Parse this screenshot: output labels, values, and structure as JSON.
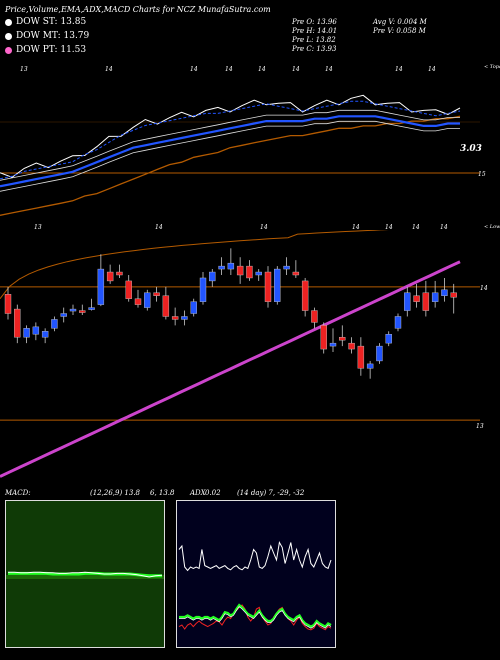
{
  "header": {
    "title": "Price,Volume,EMA,ADX,MACD Charts for NCZ MunafaSutra.com",
    "legend": [
      {
        "label": "DOW ST: 13.85",
        "color": "#ffffff"
      },
      {
        "label": "DOW MT: 13.79",
        "color": "#ffffff"
      },
      {
        "label": "DOW PT: 11.53",
        "color": "#ff66cc"
      }
    ],
    "stats": {
      "open": "Pre   O: 13.96",
      "high": "Pre   H: 14.01",
      "low": "Pre   L: 13.82",
      "close": "Pre   C: 13.93",
      "avg_vol": "Avg V: 0.004   M",
      "prev_vol": "Pre   V: 0.058   M"
    }
  },
  "ema_chart": {
    "top_tags": [
      "13",
      "14",
      "14",
      "14",
      "14",
      "14",
      "14",
      "14",
      "14"
    ],
    "top_right_tag": "< Topa",
    "bottom_tags": [
      "13",
      "14",
      "14",
      "14",
      "14",
      "14",
      "14"
    ],
    "bottom_right_tag": "< Loweа",
    "value_label": "3.03",
    "level_label": "15",
    "line_colors": {
      "white": "#ffffff",
      "blue": "#2255ff",
      "brown": "#b35a00",
      "orange": "#ff8800"
    }
  },
  "chart_data": [
    {
      "type": "line",
      "title": "",
      "series": [
        {
          "values": [
            40,
            39,
            37,
            36,
            35,
            34,
            33,
            30,
            28,
            25,
            22,
            20,
            18,
            17,
            16,
            15,
            14,
            13,
            13,
            12,
            11,
            10,
            9,
            10,
            11,
            12,
            11,
            10,
            9,
            8,
            8,
            9,
            10,
            11,
            12,
            13,
            14,
            13,
            12
          ]
        },
        {
          "values": [
            44,
            43,
            42,
            41,
            40,
            39,
            38,
            36,
            34,
            32,
            30,
            28,
            27,
            26,
            25,
            24,
            23,
            22,
            21,
            20,
            19,
            18,
            17,
            17,
            17,
            17,
            16,
            16,
            15,
            15,
            15,
            15,
            16,
            17,
            18,
            19,
            19,
            18,
            18
          ]
        },
        {
          "values": [
            56,
            55,
            54,
            53,
            52,
            51,
            50,
            48,
            47,
            45,
            43,
            41,
            39,
            37,
            35,
            34,
            32,
            31,
            30,
            28,
            27,
            26,
            25,
            24,
            23,
            23,
            22,
            21,
            20,
            20,
            19,
            19,
            18,
            18,
            17,
            17,
            16,
            16,
            15
          ]
        }
      ]
    },
    {
      "type": "candlestick",
      "title": "",
      "price_level_label": "14",
      "lower_level_label": "13",
      "candles": [
        {
          "o": 13.95,
          "h": 14.0,
          "l": 13.78,
          "c": 13.82
        },
        {
          "o": 13.85,
          "h": 13.88,
          "l": 13.62,
          "c": 13.66
        },
        {
          "o": 13.66,
          "h": 13.74,
          "l": 13.62,
          "c": 13.72
        },
        {
          "o": 13.68,
          "h": 13.76,
          "l": 13.64,
          "c": 13.73
        },
        {
          "o": 13.66,
          "h": 13.72,
          "l": 13.62,
          "c": 13.7
        },
        {
          "o": 13.72,
          "h": 13.8,
          "l": 13.7,
          "c": 13.78
        },
        {
          "o": 13.8,
          "h": 13.86,
          "l": 13.76,
          "c": 13.82
        },
        {
          "o": 13.84,
          "h": 13.88,
          "l": 13.81,
          "c": 13.85
        },
        {
          "o": 13.84,
          "h": 13.88,
          "l": 13.81,
          "c": 13.83
        },
        {
          "o": 13.86,
          "h": 13.92,
          "l": 13.84,
          "c": 13.86
        },
        {
          "o": 13.88,
          "h": 14.22,
          "l": 13.87,
          "c": 14.12
        },
        {
          "o": 14.1,
          "h": 14.15,
          "l": 14.02,
          "c": 14.04
        },
        {
          "o": 14.1,
          "h": 14.15,
          "l": 14.06,
          "c": 14.08
        },
        {
          "o": 14.04,
          "h": 14.08,
          "l": 13.9,
          "c": 13.92
        },
        {
          "o": 13.92,
          "h": 13.98,
          "l": 13.86,
          "c": 13.88
        },
        {
          "o": 13.86,
          "h": 13.98,
          "l": 13.84,
          "c": 13.96
        },
        {
          "o": 13.96,
          "h": 14.0,
          "l": 13.9,
          "c": 13.94
        },
        {
          "o": 13.94,
          "h": 14.0,
          "l": 13.78,
          "c": 13.8
        },
        {
          "o": 13.8,
          "h": 13.86,
          "l": 13.74,
          "c": 13.78
        },
        {
          "o": 13.78,
          "h": 13.84,
          "l": 13.74,
          "c": 13.8
        },
        {
          "o": 13.82,
          "h": 13.92,
          "l": 13.8,
          "c": 13.9
        },
        {
          "o": 13.9,
          "h": 14.1,
          "l": 13.88,
          "c": 14.06
        },
        {
          "o": 14.04,
          "h": 14.12,
          "l": 14.0,
          "c": 14.1
        },
        {
          "o": 14.12,
          "h": 14.2,
          "l": 14.08,
          "c": 14.14
        },
        {
          "o": 14.12,
          "h": 14.26,
          "l": 14.08,
          "c": 14.16
        },
        {
          "o": 14.14,
          "h": 14.2,
          "l": 14.02,
          "c": 14.08
        },
        {
          "o": 14.14,
          "h": 14.18,
          "l": 14.04,
          "c": 14.06
        },
        {
          "o": 14.08,
          "h": 14.12,
          "l": 14.04,
          "c": 14.1
        },
        {
          "o": 14.1,
          "h": 14.14,
          "l": 13.86,
          "c": 13.9
        },
        {
          "o": 13.9,
          "h": 14.14,
          "l": 13.88,
          "c": 14.12
        },
        {
          "o": 14.12,
          "h": 14.2,
          "l": 14.08,
          "c": 14.14
        },
        {
          "o": 14.1,
          "h": 14.18,
          "l": 14.06,
          "c": 14.08
        },
        {
          "o": 14.04,
          "h": 14.06,
          "l": 13.8,
          "c": 13.84
        },
        {
          "o": 13.84,
          "h": 13.86,
          "l": 13.72,
          "c": 13.76
        },
        {
          "o": 13.74,
          "h": 13.76,
          "l": 13.55,
          "c": 13.58
        },
        {
          "o": 13.6,
          "h": 13.72,
          "l": 13.56,
          "c": 13.62
        },
        {
          "o": 13.66,
          "h": 13.74,
          "l": 13.6,
          "c": 13.64
        },
        {
          "o": 13.62,
          "h": 13.66,
          "l": 13.55,
          "c": 13.58
        },
        {
          "o": 13.6,
          "h": 13.66,
          "l": 13.4,
          "c": 13.45
        },
        {
          "o": 13.45,
          "h": 13.5,
          "l": 13.38,
          "c": 13.48
        },
        {
          "o": 13.5,
          "h": 13.62,
          "l": 13.48,
          "c": 13.6
        },
        {
          "o": 13.62,
          "h": 13.7,
          "l": 13.6,
          "c": 13.68
        },
        {
          "o": 13.72,
          "h": 13.82,
          "l": 13.7,
          "c": 13.8
        },
        {
          "o": 13.84,
          "h": 14.0,
          "l": 13.8,
          "c": 13.96
        },
        {
          "o": 13.94,
          "h": 14.02,
          "l": 13.86,
          "c": 13.9
        },
        {
          "o": 13.96,
          "h": 14.04,
          "l": 13.8,
          "c": 13.84
        },
        {
          "o": 13.9,
          "h": 14.04,
          "l": 13.86,
          "c": 13.96
        },
        {
          "o": 13.94,
          "h": 14.06,
          "l": 13.9,
          "c": 13.98
        },
        {
          "o": 13.96,
          "h": 14.02,
          "l": 13.82,
          "c": 13.93
        }
      ]
    },
    {
      "type": "line",
      "title": "MACD",
      "params": "(12,26,9) 13.8",
      "series": [
        {
          "values": [
            0.08,
            0.08,
            0.07,
            0.07,
            0.08,
            0.08,
            0.07,
            0.07,
            0.06,
            0.06,
            0.07,
            0.07,
            0.08,
            0.07,
            0.06,
            0.05,
            0.05,
            0.06,
            0.06,
            0.05,
            0.04,
            0.02,
            0.0,
            0.02,
            0.03
          ]
        },
        {
          "values": [
            0.06,
            0.06,
            0.06,
            0.06,
            0.06,
            0.06,
            0.06,
            0.05,
            0.05,
            0.05,
            0.05,
            0.05,
            0.06,
            0.06,
            0.06,
            0.05,
            0.05,
            0.05,
            0.05,
            0.05,
            0.04,
            0.03,
            0.02,
            0.02,
            0.02
          ]
        }
      ]
    },
    {
      "type": "line",
      "title": "ADX",
      "params": "(14 day) 7, -29, -32",
      "overlap_label": "6, 13.8",
      "overlap_label2": "0.02",
      "series": [
        {
          "values": [
            45,
            50,
            20,
            15,
            20,
            18,
            20,
            18,
            45,
            22,
            20,
            18,
            20,
            22,
            18,
            20,
            22,
            18,
            16,
            20,
            22,
            18,
            16,
            20,
            18,
            30,
            45,
            40,
            20,
            18,
            22,
            35,
            50,
            40,
            30,
            55,
            48,
            25,
            40,
            55,
            30,
            45,
            30,
            20,
            35,
            45,
            25,
            20,
            30,
            40,
            25,
            20,
            18,
            30
          ]
        },
        {
          "values": [
            30,
            30,
            30,
            32,
            30,
            28,
            30,
            30,
            28,
            30,
            30,
            28,
            30,
            28,
            26,
            30,
            36,
            35,
            32,
            34,
            40,
            45,
            42,
            38,
            34,
            32,
            30,
            34,
            38,
            32,
            28,
            25,
            25,
            28,
            34,
            38,
            40,
            34,
            30,
            28,
            26,
            30,
            32,
            26,
            22,
            20,
            18,
            20,
            25,
            22,
            20,
            18,
            22,
            20
          ]
        },
        {
          "values": [
            18,
            20,
            15,
            20,
            22,
            18,
            22,
            25,
            22,
            20,
            18,
            20,
            22,
            25,
            24,
            20,
            26,
            30,
            28,
            34,
            38,
            42,
            45,
            40,
            30,
            25,
            30,
            40,
            42,
            30,
            25,
            20,
            22,
            30,
            35,
            40,
            42,
            35,
            28,
            25,
            20,
            26,
            30,
            22,
            18,
            15,
            14,
            16,
            22,
            18,
            16,
            14,
            18,
            16
          ]
        }
      ]
    }
  ]
}
